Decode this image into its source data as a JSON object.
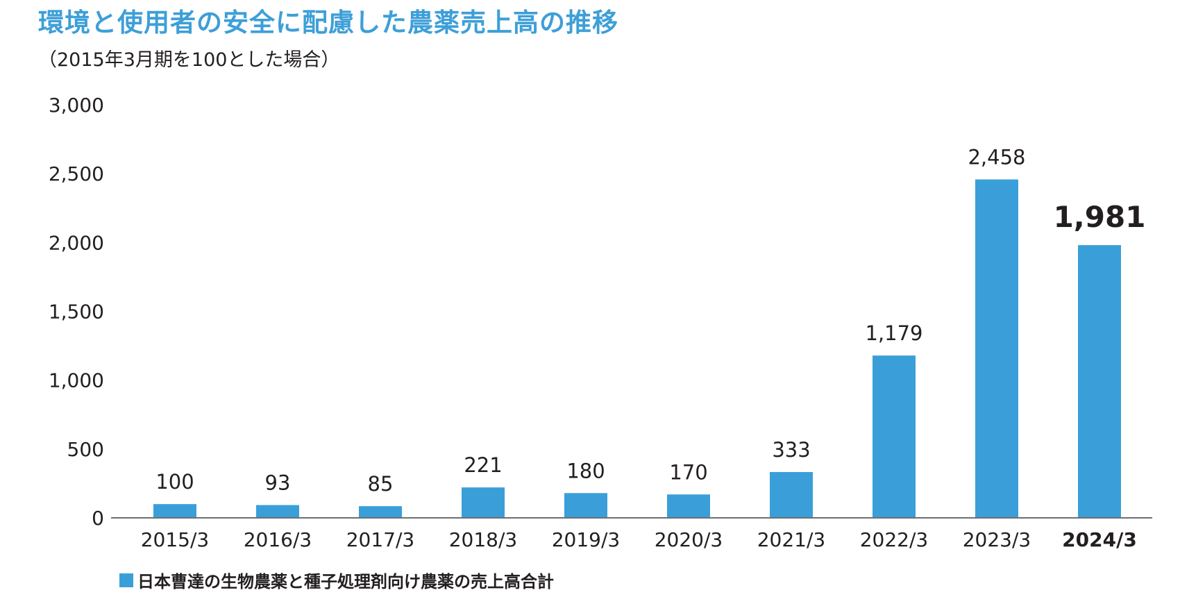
{
  "title": "環境と使用者の安全に配慮した農薬売上高の推移",
  "subtitle": "（2015年3月期を100とした場合）",
  "legend": {
    "label": "日本曹達の生物農薬と種子処理剤向け農薬の売上高合計",
    "color": "#3a9fd9"
  },
  "chart_data": {
    "type": "bar",
    "categories": [
      "2015/3",
      "2016/3",
      "2017/3",
      "2018/3",
      "2019/3",
      "2020/3",
      "2021/3",
      "2022/3",
      "2023/3",
      "2024/3"
    ],
    "values": [
      100,
      93,
      85,
      221,
      180,
      170,
      333,
      1179,
      2458,
      1981
    ],
    "value_labels": [
      "100",
      "93",
      "85",
      "221",
      "180",
      "170",
      "333",
      "1,179",
      "2,458",
      "1,981"
    ],
    "y_ticks": [
      0,
      500,
      1000,
      1500,
      2000,
      2500,
      3000
    ],
    "y_tick_labels": [
      "0",
      "500",
      "1,000",
      "1,500",
      "2,000",
      "2,500",
      "3,000"
    ],
    "ylim": [
      0,
      3000
    ],
    "highlight_category": "2024/3",
    "bar_color": "#3a9fd9",
    "grid": false
  }
}
